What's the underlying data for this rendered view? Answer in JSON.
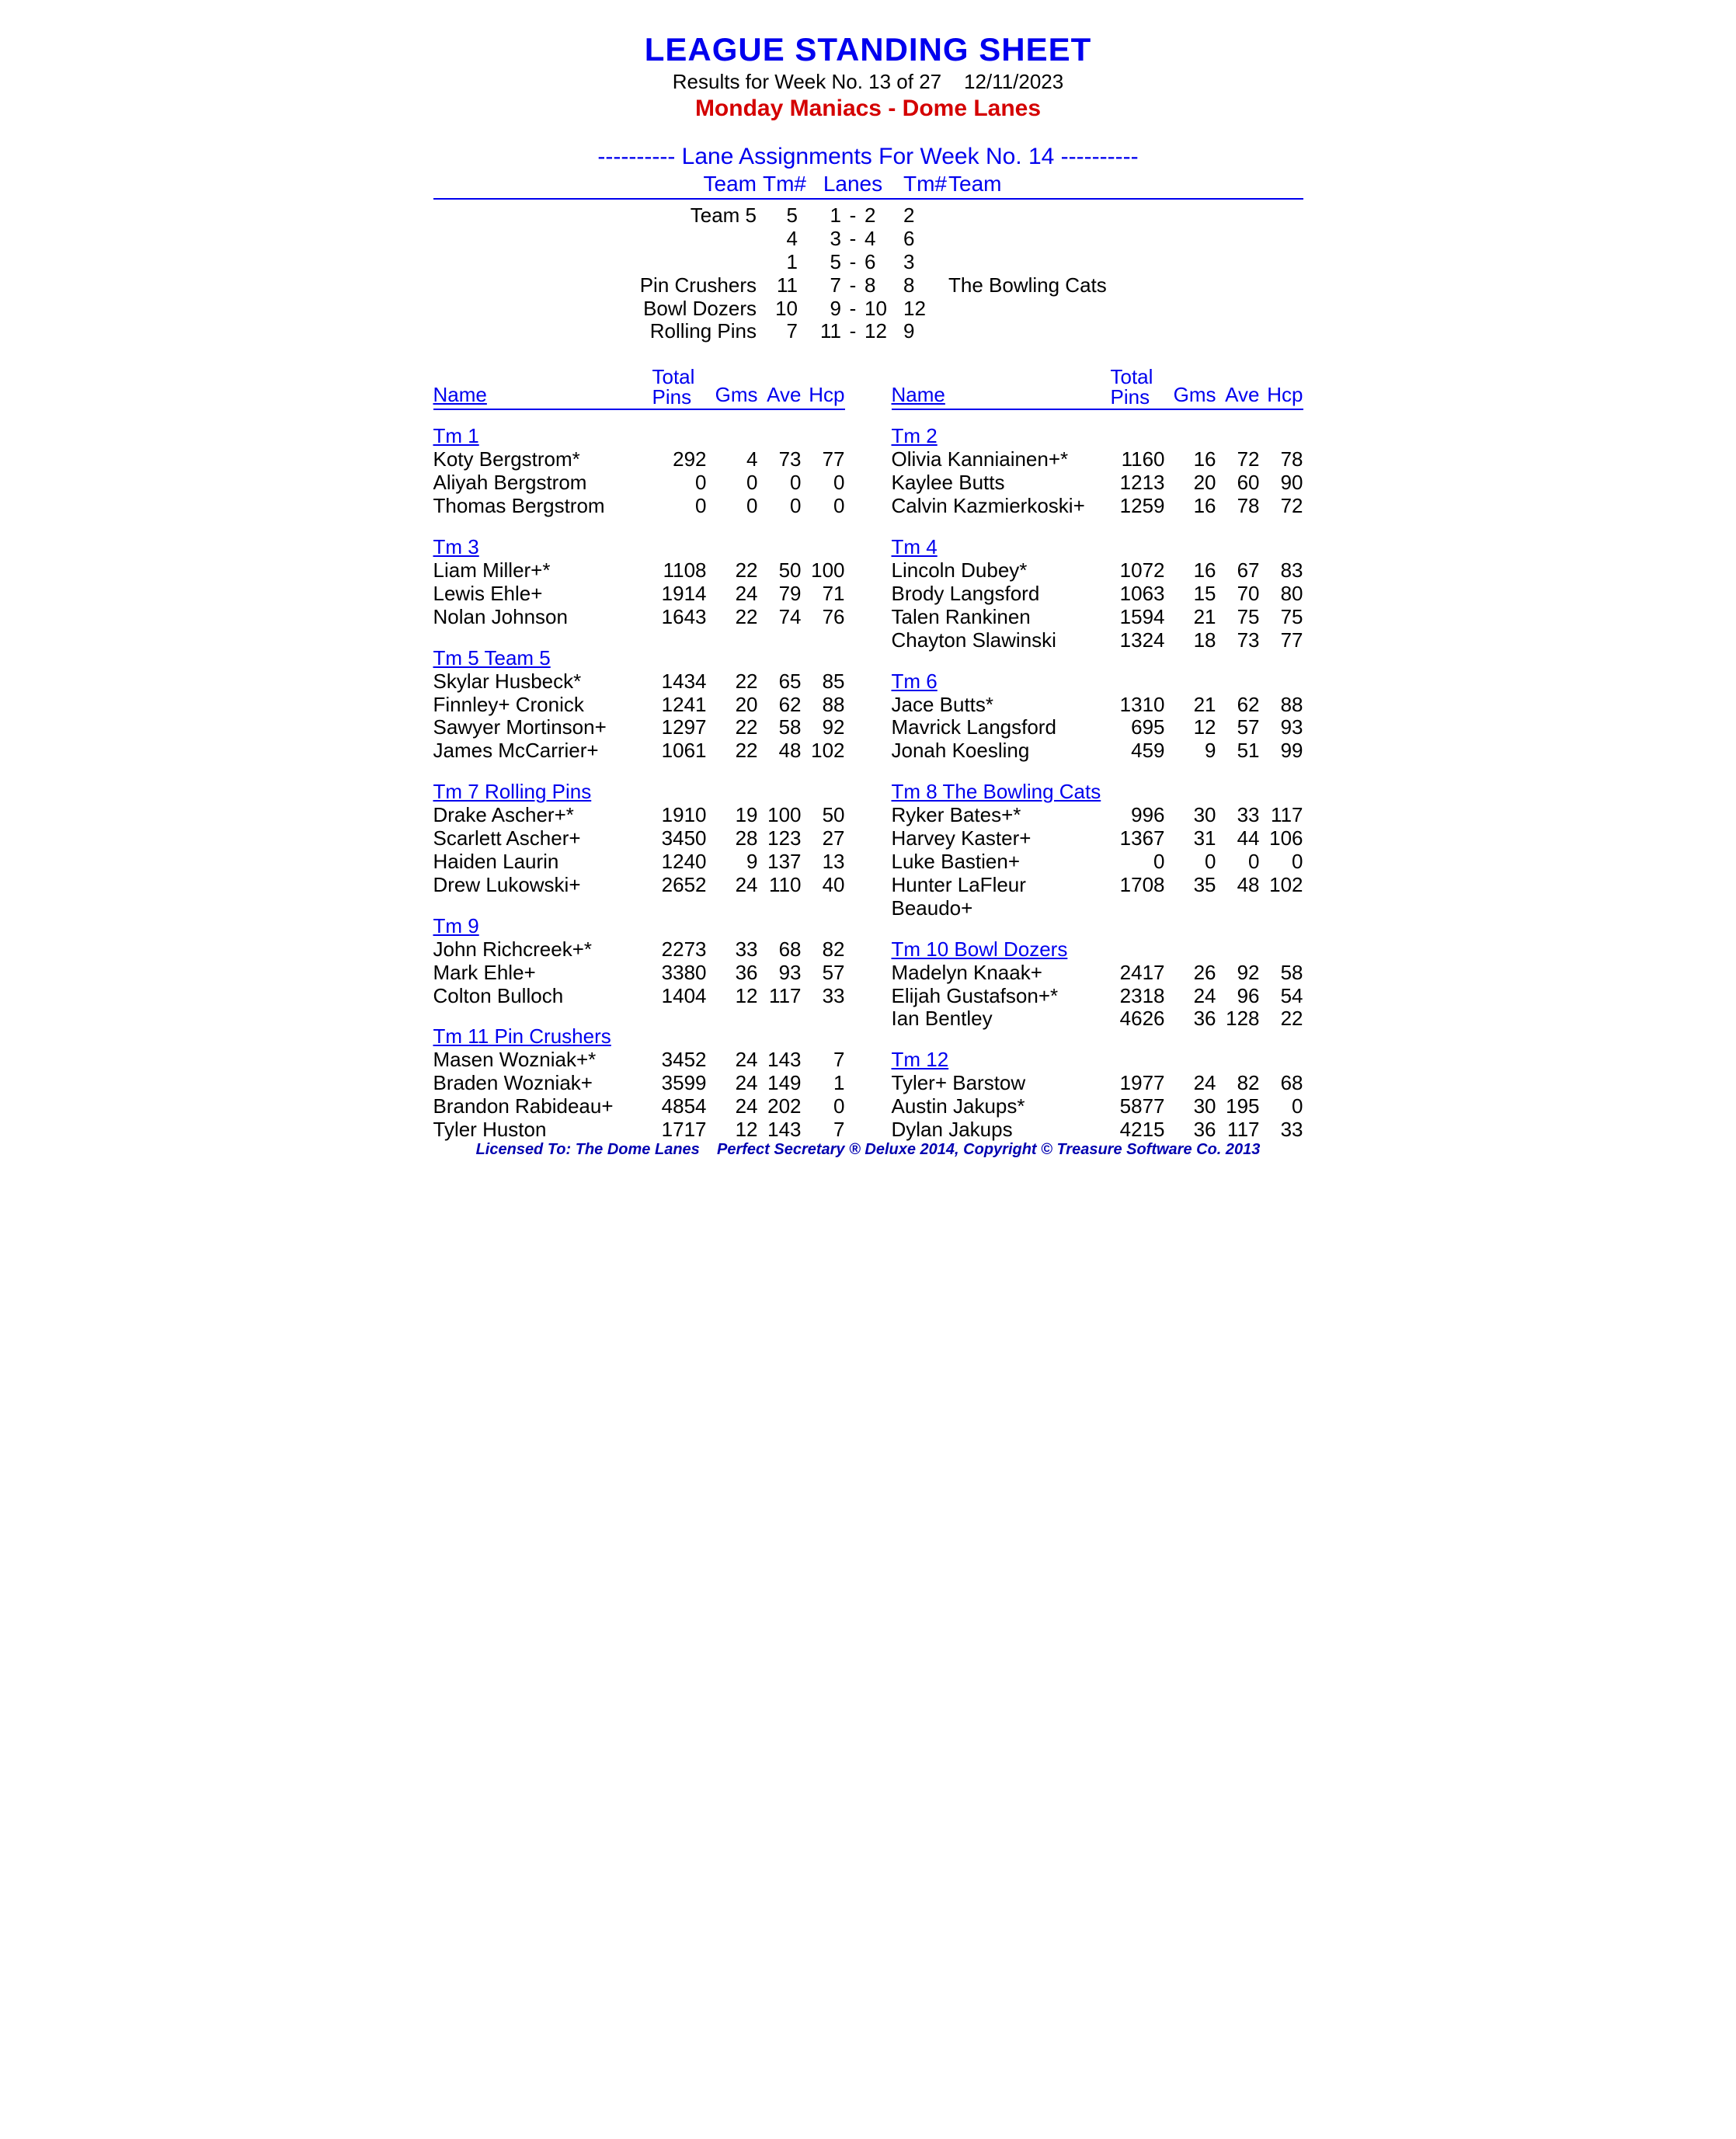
{
  "title": "LEAGUE STANDING SHEET",
  "subtitle": "Results for Week No. 13 of 27    12/11/2023",
  "league": "Monday Maniacs - Dome Lanes",
  "lane_header": "---------- Lane Assignments For Week No. 14 ----------",
  "lane_cols": {
    "team": "Team",
    "tmnum": "Tm#",
    "lanes": "Lanes",
    "tmnum2": "Tm#",
    "team2": "Team"
  },
  "lane_rows": [
    {
      "left": "Team 5",
      "tm1": "5",
      "l1": "1",
      "l2": "2",
      "tm2": "2",
      "right": ""
    },
    {
      "left": "",
      "tm1": "4",
      "l1": "3",
      "l2": "4",
      "tm2": "6",
      "right": ""
    },
    {
      "left": "",
      "tm1": "1",
      "l1": "5",
      "l2": "6",
      "tm2": "3",
      "right": ""
    },
    {
      "left": "Pin Crushers",
      "tm1": "11",
      "l1": "7",
      "l2": "8",
      "tm2": "8",
      "right": "The Bowling Cats"
    },
    {
      "left": "Bowl Dozers",
      "tm1": "10",
      "l1": "9",
      "l2": "10",
      "tm2": "12",
      "right": ""
    },
    {
      "left": "Rolling Pins",
      "tm1": "7",
      "l1": "11",
      "l2": "12",
      "tm2": "9",
      "right": ""
    }
  ],
  "col_headers": {
    "name": "Name",
    "total": "Total",
    "pins": "Pins",
    "gms": "Gms",
    "ave": "Ave",
    "hcp": "Hcp"
  },
  "left_teams": [
    {
      "title": "Tm 1",
      "players": [
        {
          "name": "Koty Bergstrom*",
          "pins": "292",
          "gms": "4",
          "ave": "73",
          "hcp": "77"
        },
        {
          "name": "Aliyah Bergstrom",
          "pins": "0",
          "gms": "0",
          "ave": "0",
          "hcp": "0"
        },
        {
          "name": "Thomas Bergstrom",
          "pins": "0",
          "gms": "0",
          "ave": "0",
          "hcp": "0"
        }
      ]
    },
    {
      "title": "Tm 3",
      "players": [
        {
          "name": "Liam Miller+*",
          "pins": "1108",
          "gms": "22",
          "ave": "50",
          "hcp": "100"
        },
        {
          "name": "Lewis Ehle+",
          "pins": "1914",
          "gms": "24",
          "ave": "79",
          "hcp": "71"
        },
        {
          "name": "Nolan Johnson",
          "pins": "1643",
          "gms": "22",
          "ave": "74",
          "hcp": "76"
        }
      ]
    },
    {
      "title": "Tm 5 Team 5",
      "players": [
        {
          "name": "Skylar Husbeck*",
          "pins": "1434",
          "gms": "22",
          "ave": "65",
          "hcp": "85"
        },
        {
          "name": "Finnley+ Cronick",
          "pins": "1241",
          "gms": "20",
          "ave": "62",
          "hcp": "88"
        },
        {
          "name": "Sawyer Mortinson+",
          "pins": "1297",
          "gms": "22",
          "ave": "58",
          "hcp": "92"
        },
        {
          "name": "James McCarrier+",
          "pins": "1061",
          "gms": "22",
          "ave": "48",
          "hcp": "102"
        }
      ]
    },
    {
      "title": "Tm 7 Rolling Pins",
      "players": [
        {
          "name": "Drake Ascher+*",
          "pins": "1910",
          "gms": "19",
          "ave": "100",
          "hcp": "50"
        },
        {
          "name": "Scarlett Ascher+",
          "pins": "3450",
          "gms": "28",
          "ave": "123",
          "hcp": "27"
        },
        {
          "name": "Haiden Laurin",
          "pins": "1240",
          "gms": "9",
          "ave": "137",
          "hcp": "13"
        },
        {
          "name": "Drew Lukowski+",
          "pins": "2652",
          "gms": "24",
          "ave": "110",
          "hcp": "40"
        }
      ]
    },
    {
      "title": "Tm 9",
      "players": [
        {
          "name": "John Richcreek+*",
          "pins": "2273",
          "gms": "33",
          "ave": "68",
          "hcp": "82"
        },
        {
          "name": "Mark Ehle+",
          "pins": "3380",
          "gms": "36",
          "ave": "93",
          "hcp": "57"
        },
        {
          "name": "Colton Bulloch",
          "pins": "1404",
          "gms": "12",
          "ave": "117",
          "hcp": "33"
        }
      ]
    },
    {
      "title": "Tm 11 Pin Crushers",
      "players": [
        {
          "name": "Masen Wozniak+*",
          "pins": "3452",
          "gms": "24",
          "ave": "143",
          "hcp": "7"
        },
        {
          "name": "Braden Wozniak+",
          "pins": "3599",
          "gms": "24",
          "ave": "149",
          "hcp": "1"
        },
        {
          "name": "Brandon Rabideau+",
          "pins": "4854",
          "gms": "24",
          "ave": "202",
          "hcp": "0"
        },
        {
          "name": "Tyler Huston",
          "pins": "1717",
          "gms": "12",
          "ave": "143",
          "hcp": "7"
        }
      ]
    }
  ],
  "right_teams": [
    {
      "title": "Tm 2",
      "players": [
        {
          "name": "Olivia Kanniainen+*",
          "pins": "1160",
          "gms": "16",
          "ave": "72",
          "hcp": "78"
        },
        {
          "name": "Kaylee Butts",
          "pins": "1213",
          "gms": "20",
          "ave": "60",
          "hcp": "90"
        },
        {
          "name": "Calvin Kazmierkoski+",
          "pins": "1259",
          "gms": "16",
          "ave": "78",
          "hcp": "72"
        }
      ]
    },
    {
      "title": "Tm 4",
      "players": [
        {
          "name": "Lincoln Dubey*",
          "pins": "1072",
          "gms": "16",
          "ave": "67",
          "hcp": "83"
        },
        {
          "name": "Brody Langsford",
          "pins": "1063",
          "gms": "15",
          "ave": "70",
          "hcp": "80"
        },
        {
          "name": "Talen Rankinen",
          "pins": "1594",
          "gms": "21",
          "ave": "75",
          "hcp": "75"
        },
        {
          "name": "Chayton Slawinski",
          "pins": "1324",
          "gms": "18",
          "ave": "73",
          "hcp": "77"
        }
      ]
    },
    {
      "title": "Tm 6",
      "players": [
        {
          "name": "Jace Butts*",
          "pins": "1310",
          "gms": "21",
          "ave": "62",
          "hcp": "88"
        },
        {
          "name": "Mavrick Langsford",
          "pins": "695",
          "gms": "12",
          "ave": "57",
          "hcp": "93"
        },
        {
          "name": "Jonah Koesling",
          "pins": "459",
          "gms": "9",
          "ave": "51",
          "hcp": "99"
        }
      ]
    },
    {
      "title": "Tm 8 The Bowling Cats",
      "players": [
        {
          "name": "Ryker Bates+*",
          "pins": "996",
          "gms": "30",
          "ave": "33",
          "hcp": "117"
        },
        {
          "name": "Harvey Kaster+",
          "pins": "1367",
          "gms": "31",
          "ave": "44",
          "hcp": "106"
        },
        {
          "name": "Luke Bastien+",
          "pins": "0",
          "gms": "0",
          "ave": "0",
          "hcp": "0"
        },
        {
          "name": "Hunter LaFleur Beaudo+",
          "pins": "1708",
          "gms": "35",
          "ave": "48",
          "hcp": "102"
        }
      ]
    },
    {
      "title": "Tm 10 Bowl Dozers",
      "players": [
        {
          "name": "Madelyn Knaak+",
          "pins": "2417",
          "gms": "26",
          "ave": "92",
          "hcp": "58"
        },
        {
          "name": "Elijah Gustafson+*",
          "pins": "2318",
          "gms": "24",
          "ave": "96",
          "hcp": "54"
        },
        {
          "name": "Ian Bentley",
          "pins": "4626",
          "gms": "36",
          "ave": "128",
          "hcp": "22"
        }
      ]
    },
    {
      "title": "Tm 12",
      "players": [
        {
          "name": "Tyler+ Barstow",
          "pins": "1977",
          "gms": "24",
          "ave": "82",
          "hcp": "68"
        },
        {
          "name": "Austin Jakups*",
          "pins": "5877",
          "gms": "30",
          "ave": "195",
          "hcp": "0"
        },
        {
          "name": "Dylan Jakups",
          "pins": "4215",
          "gms": "36",
          "ave": "117",
          "hcp": "33"
        }
      ]
    }
  ],
  "footer": "Licensed To: The Dome Lanes    Perfect Secretary ® Deluxe  2014, Copyright © Treasure Software Co. 2013"
}
